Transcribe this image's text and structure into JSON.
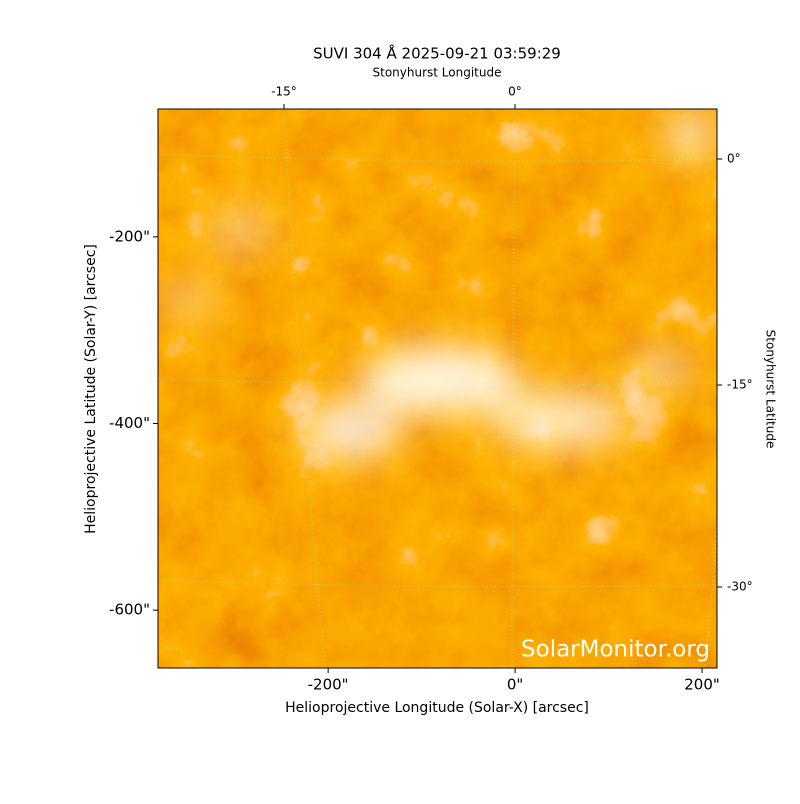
{
  "chart_data": {
    "type": "image",
    "title": "SUVI 304 Å 2025-09-21 03:59:29",
    "x_label": "Helioprojective Longitude (Solar-X) [arcsec]",
    "y_label": "Helioprojective Latitude (Solar-Y) [arcsec]",
    "xlim": [
      -382,
      216
    ],
    "ylim": [
      -662,
      -63
    ],
    "xticks": [
      {
        "value": -200,
        "label": "-200\""
      },
      {
        "value": 0,
        "label": "0\""
      },
      {
        "value": 200,
        "label": "200\""
      }
    ],
    "yticks": [
      {
        "value": -200,
        "label": "-200\""
      },
      {
        "value": -400,
        "label": "-400\""
      },
      {
        "value": -600,
        "label": "-600\""
      }
    ],
    "top_axis_label": "Stonyhurst Longitude",
    "top_ticks": [
      "-15°",
      "0°"
    ],
    "right_axis_label": "Stonyhurst Latitude",
    "right_ticks": [
      "0°",
      "-15°",
      "-30°"
    ],
    "watermark": "SolarMonitor.org"
  }
}
